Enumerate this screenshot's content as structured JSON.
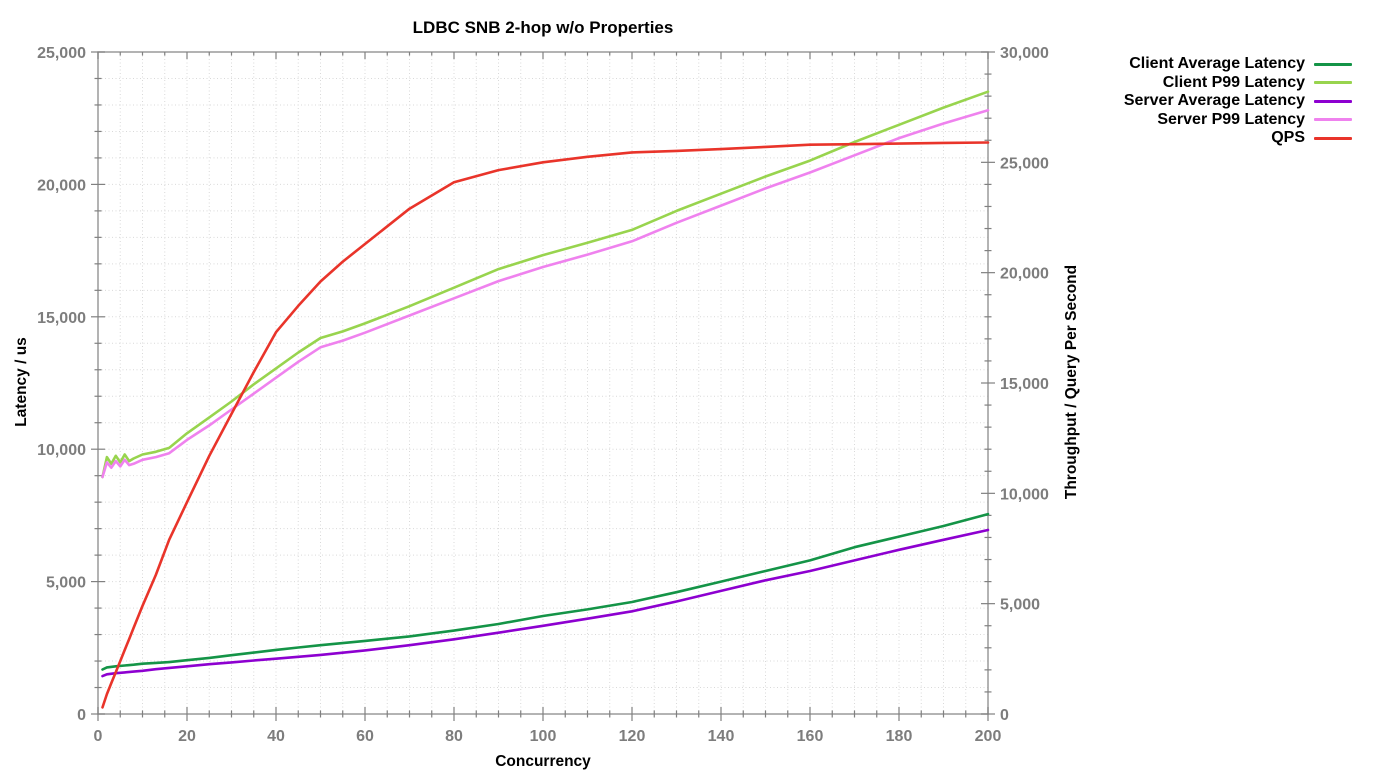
{
  "chart_data": {
    "type": "line",
    "title": "LDBC SNB 2-hop w/o Properties",
    "xlabel": "Concurrency",
    "ylabel_left": "Latency / us",
    "ylabel_right": "Throughput / Query Per Second",
    "grid": "dotted",
    "legend_position": "outside-top-right",
    "x_axis": {
      "range": [
        0,
        200
      ],
      "major_ticks": [
        0,
        20,
        40,
        60,
        80,
        100,
        120,
        140,
        160,
        180,
        200
      ],
      "minor_step": 5
    },
    "y_left": {
      "range": [
        0,
        25000
      ],
      "major_ticks": [
        0,
        5000,
        10000,
        15000,
        20000,
        25000
      ],
      "minor_step": 1000
    },
    "y_right": {
      "range": [
        0,
        30000
      ],
      "major_ticks": [
        0,
        5000,
        10000,
        15000,
        20000,
        25000,
        30000
      ],
      "minor_step": 1000
    },
    "series": [
      {
        "name": "Client Average Latency",
        "color": "#149447",
        "axis": "left",
        "points": [
          [
            1,
            1680
          ],
          [
            2,
            1760
          ],
          [
            4,
            1800
          ],
          [
            6,
            1830
          ],
          [
            8,
            1860
          ],
          [
            10,
            1900
          ],
          [
            13,
            1930
          ],
          [
            16,
            1960
          ],
          [
            20,
            2030
          ],
          [
            25,
            2120
          ],
          [
            30,
            2220
          ],
          [
            35,
            2320
          ],
          [
            40,
            2420
          ],
          [
            45,
            2510
          ],
          [
            50,
            2600
          ],
          [
            60,
            2760
          ],
          [
            70,
            2930
          ],
          [
            80,
            3150
          ],
          [
            90,
            3400
          ],
          [
            100,
            3700
          ],
          [
            110,
            3950
          ],
          [
            120,
            4230
          ],
          [
            130,
            4600
          ],
          [
            140,
            5000
          ],
          [
            150,
            5400
          ],
          [
            160,
            5800
          ],
          [
            170,
            6300
          ],
          [
            180,
            6700
          ],
          [
            190,
            7100
          ],
          [
            200,
            7550
          ]
        ]
      },
      {
        "name": "Client P99 Latency",
        "color": "#98d44e",
        "axis": "left",
        "points": [
          [
            1,
            8950
          ],
          [
            2,
            9700
          ],
          [
            3,
            9450
          ],
          [
            4,
            9750
          ],
          [
            5,
            9500
          ],
          [
            6,
            9800
          ],
          [
            7,
            9550
          ],
          [
            8,
            9650
          ],
          [
            10,
            9800
          ],
          [
            13,
            9900
          ],
          [
            16,
            10050
          ],
          [
            20,
            10600
          ],
          [
            25,
            11200
          ],
          [
            30,
            11800
          ],
          [
            35,
            12450
          ],
          [
            40,
            13050
          ],
          [
            45,
            13650
          ],
          [
            50,
            14200
          ],
          [
            55,
            14450
          ],
          [
            60,
            14750
          ],
          [
            70,
            15400
          ],
          [
            80,
            16100
          ],
          [
            90,
            16800
          ],
          [
            100,
            17330
          ],
          [
            110,
            17800
          ],
          [
            120,
            18280
          ],
          [
            130,
            19000
          ],
          [
            140,
            19650
          ],
          [
            150,
            20300
          ],
          [
            160,
            20900
          ],
          [
            170,
            21600
          ],
          [
            180,
            22250
          ],
          [
            190,
            22900
          ],
          [
            200,
            23500
          ]
        ]
      },
      {
        "name": "Server Average Latency",
        "color": "#8d00d0",
        "axis": "left",
        "points": [
          [
            1,
            1430
          ],
          [
            2,
            1500
          ],
          [
            4,
            1540
          ],
          [
            6,
            1570
          ],
          [
            8,
            1600
          ],
          [
            10,
            1630
          ],
          [
            13,
            1690
          ],
          [
            16,
            1740
          ],
          [
            20,
            1800
          ],
          [
            25,
            1880
          ],
          [
            30,
            1950
          ],
          [
            35,
            2020
          ],
          [
            40,
            2090
          ],
          [
            45,
            2160
          ],
          [
            50,
            2230
          ],
          [
            60,
            2400
          ],
          [
            70,
            2600
          ],
          [
            80,
            2820
          ],
          [
            90,
            3070
          ],
          [
            100,
            3330
          ],
          [
            110,
            3600
          ],
          [
            120,
            3880
          ],
          [
            130,
            4250
          ],
          [
            140,
            4650
          ],
          [
            150,
            5050
          ],
          [
            160,
            5400
          ],
          [
            170,
            5800
          ],
          [
            180,
            6200
          ],
          [
            190,
            6580
          ],
          [
            200,
            6950
          ]
        ]
      },
      {
        "name": "Server P99 Latency",
        "color": "#ef82ee",
        "axis": "left",
        "points": [
          [
            1,
            8950
          ],
          [
            2,
            9500
          ],
          [
            3,
            9300
          ],
          [
            4,
            9550
          ],
          [
            5,
            9350
          ],
          [
            6,
            9600
          ],
          [
            7,
            9400
          ],
          [
            8,
            9450
          ],
          [
            10,
            9600
          ],
          [
            13,
            9700
          ],
          [
            16,
            9850
          ],
          [
            20,
            10350
          ],
          [
            25,
            10900
          ],
          [
            30,
            11500
          ],
          [
            35,
            12100
          ],
          [
            40,
            12700
          ],
          [
            45,
            13300
          ],
          [
            50,
            13850
          ],
          [
            55,
            14100
          ],
          [
            60,
            14400
          ],
          [
            70,
            15050
          ],
          [
            80,
            15700
          ],
          [
            90,
            16350
          ],
          [
            100,
            16880
          ],
          [
            110,
            17350
          ],
          [
            120,
            17850
          ],
          [
            130,
            18550
          ],
          [
            140,
            19200
          ],
          [
            150,
            19850
          ],
          [
            160,
            20450
          ],
          [
            170,
            21100
          ],
          [
            180,
            21750
          ],
          [
            190,
            22300
          ],
          [
            200,
            22800
          ]
        ]
      },
      {
        "name": "QPS",
        "color": "#e9342a",
        "axis": "right",
        "points": [
          [
            1,
            300
          ],
          [
            2,
            900
          ],
          [
            3,
            1400
          ],
          [
            4,
            1900
          ],
          [
            5,
            2400
          ],
          [
            6,
            2900
          ],
          [
            7,
            3400
          ],
          [
            8,
            3900
          ],
          [
            10,
            4900
          ],
          [
            13,
            6300
          ],
          [
            16,
            7900
          ],
          [
            20,
            9600
          ],
          [
            25,
            11700
          ],
          [
            30,
            13600
          ],
          [
            35,
            15500
          ],
          [
            40,
            17300
          ],
          [
            45,
            18500
          ],
          [
            50,
            19600
          ],
          [
            55,
            20500
          ],
          [
            60,
            21300
          ],
          [
            70,
            22900
          ],
          [
            80,
            24100
          ],
          [
            90,
            24650
          ],
          [
            100,
            25000
          ],
          [
            110,
            25250
          ],
          [
            120,
            25450
          ],
          [
            130,
            25520
          ],
          [
            140,
            25600
          ],
          [
            150,
            25700
          ],
          [
            160,
            25800
          ],
          [
            170,
            25820
          ],
          [
            180,
            25850
          ],
          [
            190,
            25880
          ],
          [
            200,
            25900
          ]
        ]
      }
    ],
    "style": {
      "grid_color": "#d9d9d9",
      "border_color": "#9a9a9a",
      "tick_color": "#808080",
      "tick_label_color": "#7d7d7d"
    }
  }
}
